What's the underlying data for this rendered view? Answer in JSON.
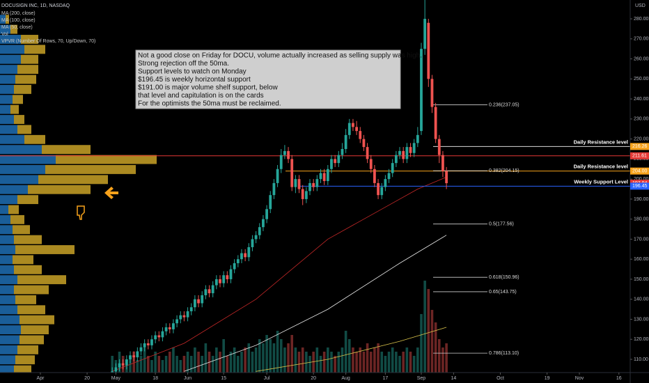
{
  "chart_data": {
    "type": "candlestick",
    "title": "DOCUSIGN INC, 1D, NASDAQ",
    "currency": "USD",
    "x": [
      20,
      21,
      22,
      23,
      24,
      25,
      26,
      27,
      28,
      29,
      30,
      31,
      32,
      33,
      34,
      35,
      36,
      37,
      38,
      39,
      40,
      41,
      42,
      43,
      44,
      45,
      46,
      47,
      48,
      49,
      50,
      51,
      52,
      53,
      54,
      55,
      56,
      57,
      58,
      59,
      60,
      61,
      62,
      63,
      64,
      65,
      66,
      67,
      68,
      69,
      70,
      71,
      72,
      73,
      74,
      75,
      76,
      77,
      78,
      79,
      80,
      81,
      82,
      83,
      84,
      85,
      86,
      87,
      88,
      89,
      90,
      91,
      92,
      93,
      94,
      95,
      96,
      97,
      98,
      99,
      100,
      101,
      102,
      103,
      104,
      105,
      106,
      107,
      108,
      109,
      110,
      111,
      112,
      113
    ],
    "open": [
      102,
      104,
      106,
      108,
      107,
      110,
      112,
      111,
      114,
      116,
      118,
      117,
      120,
      122,
      121,
      124,
      126,
      125,
      128,
      130,
      132,
      131,
      134,
      136,
      140,
      138,
      142,
      145,
      143,
      147,
      150,
      148,
      152,
      150,
      155,
      158,
      160,
      163,
      161,
      166,
      170,
      172,
      176,
      180,
      185,
      192,
      198,
      205,
      212,
      214,
      210,
      196,
      200,
      195,
      190,
      194,
      198,
      196,
      200,
      203,
      199,
      205,
      210,
      208,
      212,
      215,
      222,
      228,
      226,
      224,
      220,
      216,
      210,
      205,
      198,
      192,
      196,
      200,
      203,
      208,
      212,
      214,
      210,
      216,
      213,
      218,
      224,
      265,
      278,
      250,
      236,
      220,
      212,
      204
    ],
    "high": [
      106,
      108,
      110,
      110,
      112,
      114,
      114,
      116,
      118,
      120,
      120,
      122,
      124,
      124,
      126,
      128,
      128,
      130,
      132,
      134,
      134,
      136,
      138,
      142,
      142,
      144,
      147,
      147,
      149,
      152,
      152,
      154,
      154,
      157,
      160,
      162,
      165,
      165,
      168,
      172,
      174,
      178,
      182,
      187,
      194,
      200,
      207,
      215,
      217,
      216,
      212,
      202,
      202,
      197,
      196,
      200,
      200,
      202,
      205,
      205,
      207,
      212,
      212,
      214,
      218,
      225,
      230,
      230,
      229,
      226,
      222,
      218,
      212,
      207,
      200,
      198,
      202,
      205,
      210,
      214,
      216,
      216,
      218,
      218,
      220,
      226,
      268,
      292,
      280,
      252,
      238,
      222,
      214,
      206
    ],
    "low": [
      100,
      102,
      104,
      105,
      105,
      108,
      109,
      109,
      112,
      114,
      115,
      115,
      118,
      119,
      119,
      122,
      123,
      123,
      126,
      128,
      129,
      129,
      132,
      134,
      136,
      136,
      140,
      141,
      141,
      145,
      146,
      146,
      148,
      148,
      153,
      156,
      158,
      159,
      159,
      164,
      168,
      170,
      174,
      178,
      183,
      190,
      196,
      203,
      210,
      208,
      194,
      193,
      193,
      187,
      188,
      192,
      194,
      194,
      198,
      197,
      197,
      203,
      206,
      206,
      210,
      213,
      220,
      224,
      222,
      218,
      214,
      208,
      203,
      196,
      190,
      190,
      194,
      198,
      201,
      206,
      210,
      208,
      208,
      211,
      211,
      216,
      222,
      262,
      246,
      233,
      218,
      208,
      201,
      195
    ],
    "close": [
      104,
      106,
      108,
      107,
      110,
      112,
      111,
      114,
      116,
      118,
      117,
      120,
      122,
      121,
      124,
      126,
      125,
      128,
      130,
      132,
      131,
      134,
      136,
      140,
      138,
      142,
      145,
      143,
      147,
      150,
      148,
      152,
      150,
      155,
      158,
      160,
      163,
      161,
      166,
      170,
      172,
      176,
      180,
      185,
      192,
      198,
      205,
      212,
      214,
      210,
      196,
      200,
      195,
      190,
      194,
      198,
      196,
      200,
      203,
      199,
      205,
      210,
      208,
      212,
      215,
      222,
      228,
      226,
      224,
      220,
      216,
      210,
      205,
      198,
      192,
      196,
      200,
      203,
      208,
      212,
      214,
      210,
      216,
      213,
      218,
      222,
      265,
      280,
      250,
      236,
      220,
      212,
      204,
      197.94
    ],
    "volume_name": "Vol",
    "volume": [
      4,
      3,
      5,
      4,
      3,
      4,
      5,
      3,
      4,
      6,
      4,
      3,
      5,
      4,
      3,
      4,
      5,
      6,
      4,
      3,
      4,
      5,
      4,
      6,
      5,
      4,
      7,
      5,
      4,
      6,
      5,
      8,
      4,
      5,
      6,
      4,
      5,
      6,
      7,
      5,
      6,
      8,
      7,
      9,
      8,
      7,
      10,
      8,
      6,
      7,
      9,
      6,
      5,
      6,
      5,
      4,
      5,
      6,
      4,
      5,
      6,
      5,
      4,
      5,
      6,
      10,
      8,
      6,
      5,
      6,
      5,
      7,
      5,
      6,
      7,
      5,
      4,
      5,
      6,
      5,
      4,
      5,
      6,
      5,
      4,
      6,
      14,
      22,
      20,
      15,
      12,
      8,
      6,
      7
    ],
    "volume_lim": [
      0,
      25
    ],
    "up_color": "#26a69a",
    "down_color": "#ef5350",
    "xlim": [
      -11.24,
      164.14
    ],
    "xticks": [
      {
        "value": 0,
        "label": "Apr"
      },
      {
        "value": 13,
        "label": "20"
      },
      {
        "value": 21,
        "label": "May"
      },
      {
        "value": 32,
        "label": "18"
      },
      {
        "value": 41,
        "label": "Jun"
      },
      {
        "value": 51,
        "label": "15"
      },
      {
        "value": 63,
        "label": "Jul"
      },
      {
        "value": 76,
        "label": "20"
      },
      {
        "value": 85,
        "label": "Aug"
      },
      {
        "value": 96,
        "label": "17"
      },
      {
        "value": 106,
        "label": "Sep"
      },
      {
        "value": 115,
        "label": "14"
      },
      {
        "value": 128,
        "label": "Oct"
      },
      {
        "value": 141,
        "label": "19"
      },
      {
        "value": 150,
        "label": "Nov"
      },
      {
        "value": 161,
        "label": "16"
      }
    ],
    "ylim": [
      103.4,
      289.4
    ],
    "yticks": [
      {
        "value": 110,
        "label": "110.00"
      },
      {
        "value": 120,
        "label": "120.00"
      },
      {
        "value": 130,
        "label": "130.00"
      },
      {
        "value": 140,
        "label": "140.00"
      },
      {
        "value": 150,
        "label": "150.00"
      },
      {
        "value": 160,
        "label": "160.00"
      },
      {
        "value": 170,
        "label": "170.00"
      },
      {
        "value": 180,
        "label": "180.00"
      },
      {
        "value": 190,
        "label": "190.00"
      },
      {
        "value": 200,
        "label": "200.00"
      },
      {
        "value": 210,
        "label": "210.00"
      },
      {
        "value": 220,
        "label": "220.00"
      },
      {
        "value": 230,
        "label": "230.00"
      },
      {
        "value": 240,
        "label": "240.00"
      },
      {
        "value": 250,
        "label": "250.00"
      },
      {
        "value": 260,
        "label": "260.00"
      },
      {
        "value": 270,
        "label": "270.00"
      },
      {
        "value": 280,
        "label": "280.00"
      }
    ],
    "indicators": [
      {
        "name": "MA (200, close)",
        "color": "#d8c24a",
        "x": [
          60,
          80,
          100,
          113
        ],
        "values": [
          104,
          110,
          119,
          126
        ]
      },
      {
        "name": "MA (100, close)",
        "color": "#e8e8e8",
        "x": [
          40,
          60,
          80,
          100,
          113
        ],
        "values": [
          104,
          117,
          135,
          158,
          172
        ]
      },
      {
        "name": "MA (50, close)",
        "color": "#c62828",
        "x": [
          20,
          40,
          60,
          80,
          95,
          105,
          113
        ],
        "values": [
          104,
          118,
          140,
          170,
          185,
          195,
          201
        ]
      }
    ],
    "vpvr": {
      "name": "VPVR (Number Of Rows, 70, Up/Down, 70)",
      "up_color": "#1f6fb4",
      "down_color": "#c9a227",
      "xlim": [
        0,
        905
      ],
      "bins": [
        102,
        107,
        112,
        117,
        122,
        127,
        132,
        137,
        142,
        147,
        152,
        157,
        162,
        167,
        172,
        177,
        182,
        187,
        192,
        197,
        202,
        207,
        212,
        217,
        222,
        227,
        232,
        237,
        242,
        247,
        252,
        257,
        262,
        267,
        272,
        277,
        282
      ],
      "up": [
        20,
        22,
        25,
        28,
        30,
        28,
        25,
        22,
        20,
        25,
        20,
        18,
        22,
        20,
        18,
        15,
        12,
        25,
        40,
        55,
        65,
        80,
        60,
        35,
        25,
        20,
        15,
        18,
        20,
        22,
        25,
        30,
        35,
        30,
        15,
        8
      ],
      "down": [
        25,
        28,
        30,
        35,
        40,
        50,
        40,
        30,
        50,
        70,
        40,
        30,
        85,
        40,
        25,
        20,
        15,
        30,
        90,
        100,
        130,
        145,
        70,
        30,
        20,
        15,
        12,
        15,
        25,
        30,
        30,
        25,
        30,
        25,
        10,
        5
      ]
    },
    "levels": [
      {
        "label": "Daily Resistance level",
        "value": 216.26,
        "color": "#d8d8d8"
      },
      {
        "label": "Daily Resistance level",
        "value": 204,
        "color": "#f7a21b"
      },
      {
        "label": "Weekly Support Level",
        "value": 196.45,
        "color": "#2962ff"
      }
    ],
    "price_tags": [
      {
        "value": 216.26,
        "label": "216.26",
        "color": "#f7a21b"
      },
      {
        "value": 211.61,
        "label": "211.61",
        "color": "#e53935",
        "line": true
      },
      {
        "value": 204,
        "label": "204.00",
        "color": "#f7a21b"
      },
      {
        "value": 197.94,
        "label": "197.94",
        "color": "#e53935"
      },
      {
        "value": 196.45,
        "label": "196.45",
        "color": "#2962ff"
      }
    ],
    "fib": [
      {
        "value": 237.05,
        "label": "0.236(237.05)"
      },
      {
        "value": 204.15,
        "label": "0.382(204.15)"
      },
      {
        "value": 177.56,
        "label": "0.5(177.56)"
      },
      {
        "value": 150.96,
        "label": "0.618(150.96)"
      },
      {
        "value": 143.75,
        "label": "0.65(143.75)"
      },
      {
        "value": 113.1,
        "label": "0.786(113.10)"
      }
    ],
    "annotation": [
      "Not a good close on Friday for DOCU, volume actually increased as selling supply was high.",
      "Strong rejection off the 50ma.",
      "Support levels to watch on Monday",
      "$196.45 is weekly horizontal support",
      "$191.00 is major volume shelf support, below",
      "that level and capitulation is on the cards",
      "For the optimists the 50ma must be reclaimed."
    ]
  }
}
